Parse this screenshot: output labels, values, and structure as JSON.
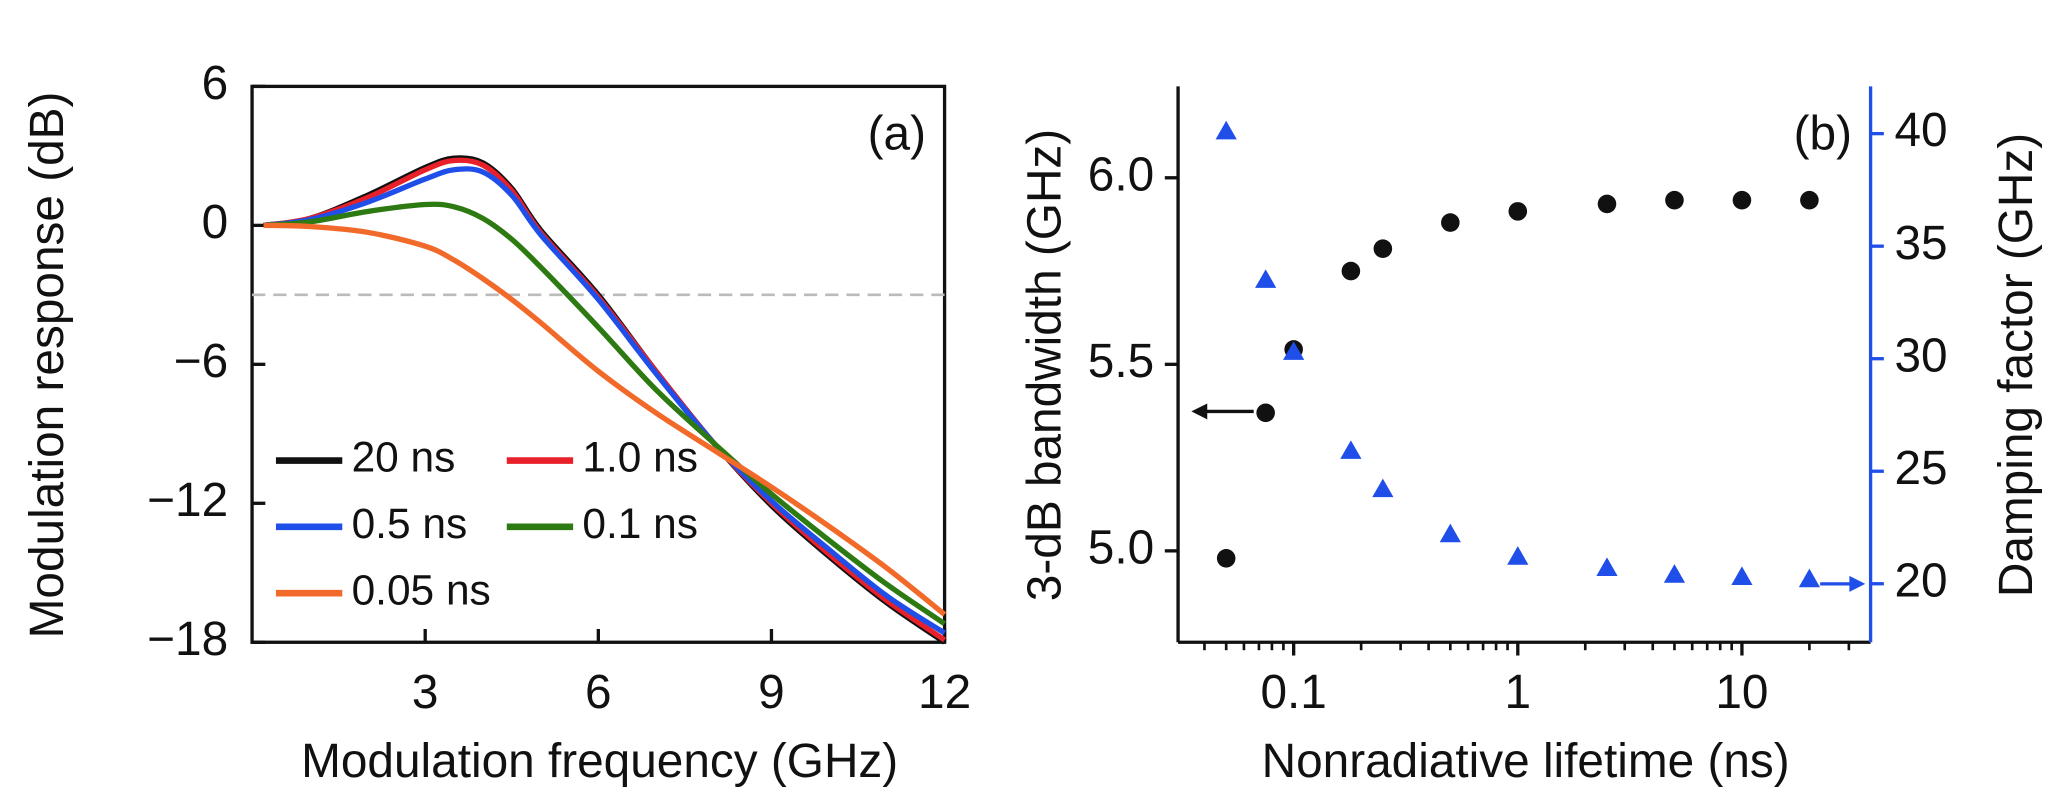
{
  "chart_data": [
    {
      "type": "line",
      "label": "(a)",
      "x_label": "Modulation frequency (GHz)",
      "y_label": "Modulation response (dB)",
      "x": [
        0.2,
        1,
        2,
        3,
        3.5,
        4,
        4.5,
        5,
        6,
        7,
        8,
        9,
        10,
        11,
        12
      ],
      "xlim": [
        0,
        12
      ],
      "xticks": [
        3,
        6,
        9,
        12
      ],
      "ylim": [
        -18,
        6
      ],
      "yticks": [
        6,
        0,
        {
          "value": -6,
          "label": "−6"
        },
        {
          "value": -12,
          "label": "−12"
        },
        {
          "value": -18,
          "label": "−18"
        }
      ],
      "reference_line": -3,
      "series": [
        {
          "name": "20 ns",
          "color": "#111111",
          "values": [
            0,
            0.3,
            1.3,
            2.5,
            2.9,
            2.7,
            1.6,
            -0.2,
            -3.0,
            -6.3,
            -9.4,
            -12.1,
            -14.3,
            -16.3,
            -18.0
          ]
        },
        {
          "name": "1.0 ns",
          "color": "#e8202a",
          "values": [
            0,
            0.3,
            1.2,
            2.4,
            2.8,
            2.6,
            1.5,
            -0.3,
            -3.1,
            -6.3,
            -9.4,
            -12.0,
            -14.2,
            -16.2,
            -17.9
          ]
        },
        {
          "name": "0.5 ns",
          "color": "#1f4fe8",
          "values": [
            0,
            0.25,
            1.0,
            2.0,
            2.4,
            2.3,
            1.3,
            -0.4,
            -3.2,
            -6.4,
            -9.4,
            -11.9,
            -14.0,
            -16.0,
            -17.6
          ]
        },
        {
          "name": "0.1 ns",
          "color": "#2d7a12",
          "values": [
            0,
            0.15,
            0.6,
            0.9,
            0.8,
            0.3,
            -0.6,
            -1.8,
            -4.4,
            -7.1,
            -9.4,
            -11.6,
            -13.6,
            -15.5,
            -17.2
          ]
        },
        {
          "name": "0.05 ns",
          "color": "#f26a2a",
          "values": [
            0,
            -0.05,
            -0.3,
            -0.9,
            -1.5,
            -2.3,
            -3.2,
            -4.2,
            -6.3,
            -8.1,
            -9.7,
            -11.3,
            -13.0,
            -14.8,
            -16.8
          ]
        }
      ]
    },
    {
      "type": "scatter",
      "label": "(b)",
      "x_label": "Nonradiative lifetime (ns)",
      "y_label": "3-dB bandwidth (GHz)",
      "y2_label": "Damping factor (GHz)",
      "x_scale": "log",
      "x": [
        0.05,
        0.075,
        0.1,
        0.18,
        0.25,
        0.5,
        1,
        2.5,
        5,
        10,
        20
      ],
      "xlim": [
        0.0305,
        37.5
      ],
      "xticks": [
        0.1,
        1,
        10
      ],
      "xminorticks": [
        0.04,
        0.05,
        0.06,
        0.07,
        0.08,
        0.09,
        0.2,
        0.3,
        0.4,
        0.5,
        0.6,
        0.7,
        0.8,
        0.9,
        2,
        3,
        4,
        5,
        6,
        7,
        8,
        9,
        20,
        30
      ],
      "ylim": [
        4.755,
        6.245
      ],
      "yticks": [
        {
          "value": 5,
          "label": "5.0"
        },
        5.5,
        {
          "value": 6,
          "label": "6.0"
        }
      ],
      "y2lim": [
        17.4,
        42.1
      ],
      "y2ticks": [
        20,
        25,
        30,
        35,
        40
      ],
      "y2_color": "#1f4fe8",
      "series": [
        {
          "color": "#111111",
          "marker": "circle",
          "values": [
            4.98,
            5.37,
            5.54,
            5.75,
            5.81,
            5.88,
            5.91,
            5.93,
            5.94,
            5.94,
            5.94
          ]
        },
        {
          "color": "#1f4fe8",
          "marker": "triangle",
          "axis": "y2",
          "values": [
            40.1,
            33.5,
            30.3,
            25.9,
            24.2,
            22.2,
            21.2,
            20.7,
            20.4,
            20.3,
            20.2
          ]
        }
      ]
    }
  ]
}
